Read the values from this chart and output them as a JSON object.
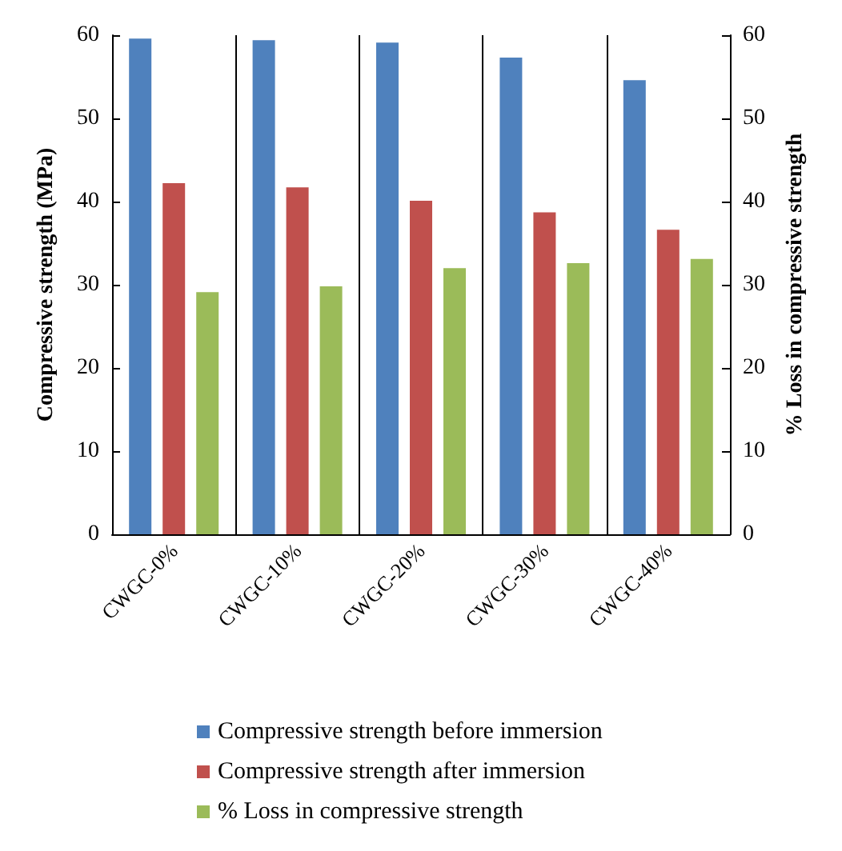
{
  "chart_data": {
    "type": "bar",
    "ylabel": "Compressive strength (MPa)",
    "y2label": "% Loss in compressive strength",
    "categories": [
      "CWGC-0%",
      "CWGC-10%",
      "CWGC-20%",
      "CWGC-30%",
      "CWGC-40%"
    ],
    "series": [
      {
        "name": "Compressive strength before immersion",
        "color": "#4f81bd",
        "values": [
          59.6,
          59.4,
          59.1,
          57.3,
          54.6
        ]
      },
      {
        "name": "Compressive strength after immersion",
        "color": "#c0504d",
        "values": [
          42.2,
          41.7,
          40.1,
          38.7,
          36.6
        ]
      },
      {
        "name": "% Loss in compressive strength",
        "color": "#9bbb59",
        "axis": "y2",
        "values": [
          29.1,
          29.8,
          32.0,
          32.6,
          33.1
        ]
      }
    ],
    "ylim": [
      0,
      60
    ],
    "yticks": [
      0,
      10,
      20,
      30,
      40,
      50,
      60
    ],
    "y2lim": [
      0,
      60
    ],
    "y2ticks": [
      0,
      10,
      20,
      30,
      40,
      50,
      60
    ],
    "grid": "x",
    "legend": "bottom"
  }
}
